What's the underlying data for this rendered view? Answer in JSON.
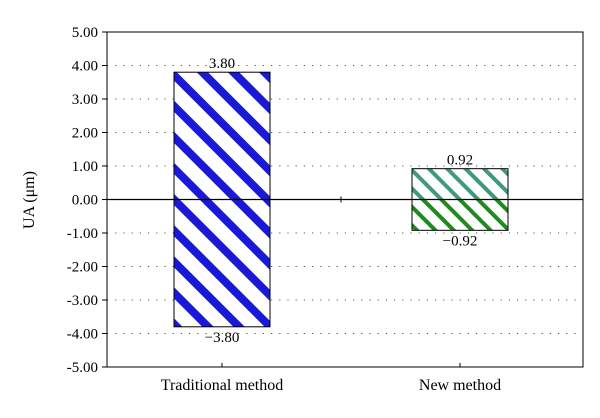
{
  "chart_data": {
    "type": "bar",
    "ylabel": "UA (μm)",
    "ylim": [
      -5,
      5
    ],
    "yticks": [
      5,
      4,
      3,
      2,
      1,
      0,
      -1,
      -2,
      -3,
      -4,
      -5
    ],
    "ytick_labels": [
      "5.00",
      "4.00",
      "3.00",
      "2.00",
      "1.00",
      "0.00",
      "-1.00",
      "-2.00",
      "-3.00",
      "-4.00",
      "-5.00"
    ],
    "grid": "dotted horizontal",
    "categories": [
      "Traditional method",
      "New method"
    ],
    "bars": [
      {
        "category": "Traditional method",
        "upper": 3.8,
        "lower": -3.8,
        "upper_label": "3.80",
        "lower_label": "−3.80",
        "upper_hatch_color": "#1a1ad6",
        "lower_hatch_color": "#1a1ad6"
      },
      {
        "category": "New method",
        "upper": 0.92,
        "lower": -0.92,
        "upper_label": "0.92",
        "lower_label": "−0.92",
        "upper_hatch_color": "#3f9a7a",
        "lower_hatch_color": "#1f8a1f"
      }
    ]
  }
}
